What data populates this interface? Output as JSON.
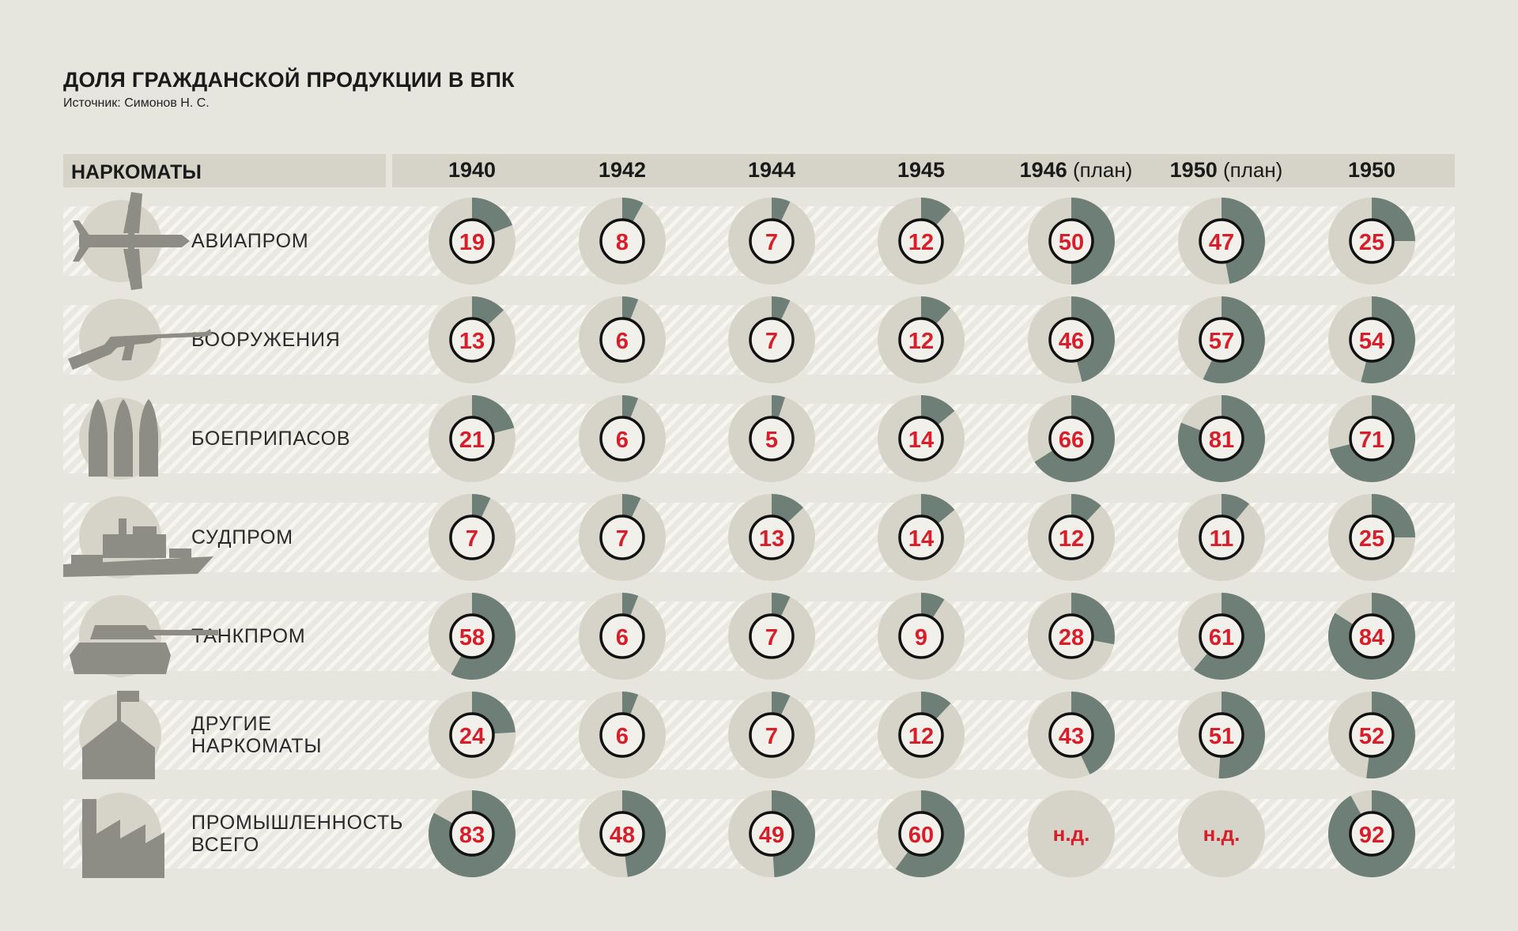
{
  "title": "ДОЛЯ ГРАЖДАНСКОЙ ПРОДУКЦИИ В ВПК",
  "source": "Источник: Симонов Н. С.",
  "header_label": "НАРКОМАТЫ",
  "colors": {
    "background": "#e6e5de",
    "ring": "#d6d4c8",
    "share": "#6e7f78",
    "number": "#d81e2a",
    "icon": "#8e8d85"
  },
  "chart_data": {
    "type": "pie",
    "unit": "%",
    "years": [
      {
        "year": "1940",
        "note": ""
      },
      {
        "year": "1942",
        "note": ""
      },
      {
        "year": "1944",
        "note": ""
      },
      {
        "year": "1945",
        "note": ""
      },
      {
        "year": "1946",
        "note": "(план)"
      },
      {
        "year": "1950",
        "note": "(план)"
      },
      {
        "year": "1950",
        "note": ""
      }
    ],
    "rows": [
      {
        "label": "АВИАПРОМ",
        "icon": "airplane-icon",
        "values": [
          19,
          8,
          7,
          12,
          50,
          47,
          25
        ]
      },
      {
        "label": "ВООРУЖЕНИЯ",
        "icon": "rifle-icon",
        "values": [
          13,
          6,
          7,
          12,
          46,
          57,
          54
        ]
      },
      {
        "label": "БОЕПРИПАСОВ",
        "icon": "shells-icon",
        "values": [
          21,
          6,
          5,
          14,
          66,
          81,
          71
        ]
      },
      {
        "label": "СУДПРОМ",
        "icon": "warship-icon",
        "values": [
          7,
          7,
          13,
          14,
          12,
          11,
          25
        ]
      },
      {
        "label": "ТАНКПРОМ",
        "icon": "tank-icon",
        "values": [
          58,
          6,
          7,
          9,
          28,
          61,
          84
        ]
      },
      {
        "label": "ДРУГИЕ\nНАРКОМАТЫ",
        "icon": "building-flag-icon",
        "values": [
          24,
          6,
          7,
          12,
          43,
          51,
          52
        ]
      },
      {
        "label": "ПРОМЫШЛЕННОСТЬ\nВСЕГО",
        "icon": "factory-icon",
        "values": [
          83,
          48,
          49,
          60,
          null,
          null,
          92
        ]
      }
    ],
    "missing_label": "н.д."
  }
}
